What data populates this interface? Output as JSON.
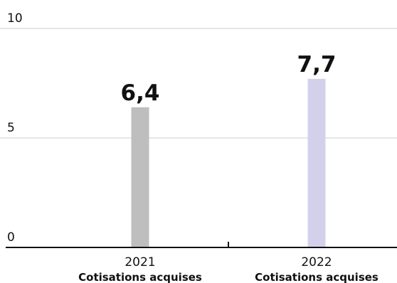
{
  "chart_data": {
    "type": "bar",
    "title": "",
    "xlabel": "",
    "ylabel": "",
    "ylim": [
      0,
      10
    ],
    "yticks": [
      0,
      5,
      10
    ],
    "ytick_labels": [
      "0",
      "5",
      "10"
    ],
    "grid": true,
    "categories": [
      "2021",
      "2022"
    ],
    "category_sublabels": [
      "Cotisations acquises",
      "Cotisations acquises"
    ],
    "values": [
      6.4,
      7.7
    ],
    "value_labels": [
      "6,4",
      "7,7"
    ],
    "colors": [
      "#bdbebd",
      "#d3d0ec"
    ],
    "gridline_color": "#cfcfcf",
    "axis_color": "#111111"
  }
}
